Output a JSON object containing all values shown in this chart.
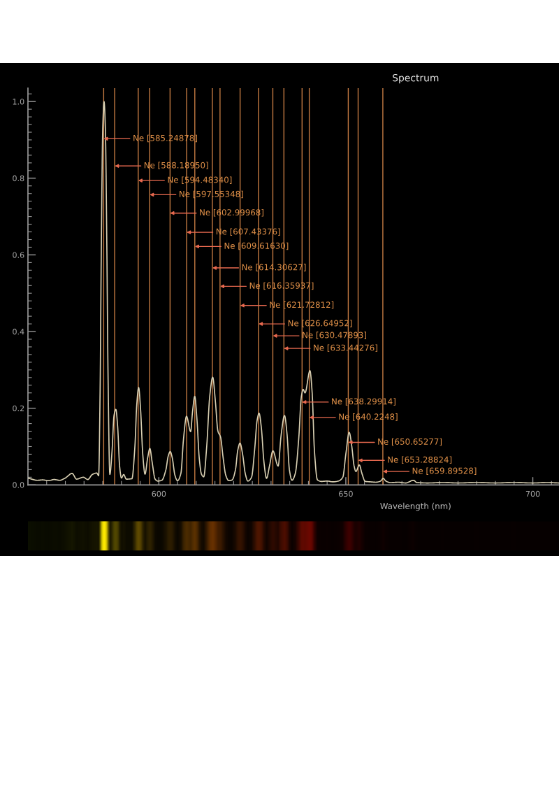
{
  "chart_data": {
    "type": "line",
    "title": "Spectrum",
    "xlabel": "Wavelength (nm)",
    "x": [
      565.0,
      566.0,
      567.5,
      569.0,
      570.5,
      572.0,
      573.5,
      575.0,
      576.8,
      578.0,
      579.8,
      581.0,
      582.2,
      583.4,
      583.9,
      584.3,
      584.6,
      585.0,
      585.35,
      585.7,
      586.1,
      586.4,
      586.9,
      587.5,
      588.0,
      588.5,
      589.0,
      589.5,
      590.0,
      590.6,
      591.3,
      592.8,
      593.6,
      594.1,
      594.6,
      595.1,
      595.7,
      596.3,
      597.0,
      597.6,
      598.2,
      599.0,
      599.7,
      600.8,
      601.9,
      602.5,
      603.05,
      603.6,
      604.3,
      605.0,
      605.9,
      606.6,
      607.4,
      608.5,
      609.0,
      609.6,
      610.2,
      610.8,
      611.4,
      612.0,
      612.8,
      613.6,
      614.4,
      615.1,
      615.8,
      616.5,
      617.2,
      617.9,
      618.7,
      619.6,
      620.5,
      621.1,
      621.7,
      622.4,
      623.1,
      623.8,
      624.8,
      625.6,
      626.3,
      626.8,
      627.4,
      628.1,
      628.8,
      629.6,
      630.5,
      631.9,
      632.7,
      633.6,
      634.3,
      634.9,
      635.6,
      636.5,
      637.4,
      638.1,
      638.6,
      639.1,
      640.4,
      641.0,
      641.6,
      642.4,
      643.5,
      645.0,
      646.5,
      648.0,
      649.2,
      650.0,
      650.9,
      651.6,
      652.2,
      652.7,
      653.6,
      654.3,
      655.2,
      656.5,
      658.0,
      659.3,
      660.0,
      660.7,
      662.0,
      664.0,
      666.0,
      668.1,
      669.0,
      672.0,
      676.0,
      680.0,
      685.0,
      690.0,
      695.0,
      700.0,
      704.0,
      707.0
    ],
    "series": [
      {
        "color": "#d8cfb2",
        "values": [
          0.018,
          0.015,
          0.012,
          0.013,
          0.011,
          0.014,
          0.012,
          0.018,
          0.03,
          0.015,
          0.02,
          0.014,
          0.027,
          0.031,
          0.024,
          0.25,
          0.6,
          0.93,
          1.0,
          0.93,
          0.62,
          0.3,
          0.027,
          0.09,
          0.18,
          0.197,
          0.15,
          0.05,
          0.018,
          0.027,
          0.015,
          0.016,
          0.1,
          0.21,
          0.254,
          0.2,
          0.08,
          0.028,
          0.07,
          0.095,
          0.06,
          0.015,
          0.01,
          0.012,
          0.04,
          0.075,
          0.087,
          0.07,
          0.025,
          0.011,
          0.03,
          0.12,
          0.179,
          0.139,
          0.19,
          0.231,
          0.17,
          0.07,
          0.028,
          0.021,
          0.1,
          0.23,
          0.281,
          0.22,
          0.14,
          0.125,
          0.07,
          0.025,
          0.011,
          0.013,
          0.04,
          0.09,
          0.109,
          0.08,
          0.03,
          0.01,
          0.02,
          0.09,
          0.17,
          0.187,
          0.15,
          0.06,
          0.017,
          0.05,
          0.089,
          0.049,
          0.13,
          0.181,
          0.13,
          0.04,
          0.012,
          0.03,
          0.12,
          0.23,
          0.249,
          0.24,
          0.298,
          0.24,
          0.09,
          0.013,
          0.009,
          0.01,
          0.008,
          0.01,
          0.02,
          0.08,
          0.137,
          0.1,
          0.05,
          0.035,
          0.052,
          0.03,
          0.009,
          0.008,
          0.007,
          0.01,
          0.017,
          0.01,
          0.006,
          0.007,
          0.005,
          0.012,
          0.006,
          0.005,
          0.006,
          0.005,
          0.006,
          0.005,
          0.006,
          0.005,
          0.006,
          0.005
        ]
      }
    ],
    "xlim": [
      565,
      707
    ],
    "ylim": [
      0,
      1.035
    ],
    "xticks": [
      {
        "value": 570,
        "label": null
      },
      {
        "value": 575,
        "label": null
      },
      {
        "value": 580,
        "label": null
      },
      {
        "value": 585,
        "label": null
      },
      {
        "value": 590,
        "label": null
      },
      {
        "value": 595,
        "label": null
      },
      600,
      {
        "value": 605,
        "label": null
      },
      {
        "value": 610,
        "label": null
      },
      {
        "value": 615,
        "label": null
      },
      {
        "value": 620,
        "label": null
      },
      {
        "value": 625,
        "label": null
      },
      {
        "value": 630,
        "label": null
      },
      {
        "value": 635,
        "label": null
      },
      {
        "value": 640,
        "label": null
      },
      {
        "value": 645,
        "label": null
      },
      650,
      {
        "value": 655,
        "label": null
      },
      {
        "value": 660,
        "label": null
      },
      {
        "value": 665,
        "label": null
      },
      {
        "value": 670,
        "label": null
      },
      {
        "value": 675,
        "label": null
      },
      {
        "value": 680,
        "label": null
      },
      {
        "value": 685,
        "label": null
      },
      {
        "value": 690,
        "label": null
      },
      {
        "value": 695,
        "label": null
      },
      700,
      {
        "value": 705,
        "label": null
      }
    ],
    "yticks": [
      {
        "value": 0,
        "label": "0.0"
      },
      {
        "value": 0.02,
        "label": null
      },
      {
        "value": 0.04,
        "label": null
      },
      {
        "value": 0.06,
        "label": null
      },
      {
        "value": 0.08,
        "label": null
      },
      {
        "value": 0.1,
        "label": null
      },
      {
        "value": 0.12,
        "label": null
      },
      {
        "value": 0.14,
        "label": null
      },
      {
        "value": 0.16,
        "label": null
      },
      {
        "value": 0.18,
        "label": null
      },
      0.2,
      {
        "value": 0.22,
        "label": null
      },
      {
        "value": 0.24,
        "label": null
      },
      {
        "value": 0.26,
        "label": null
      },
      {
        "value": 0.28,
        "label": null
      },
      {
        "value": 0.3,
        "label": null
      },
      {
        "value": 0.32,
        "label": null
      },
      {
        "value": 0.34,
        "label": null
      },
      {
        "value": 0.36,
        "label": null
      },
      {
        "value": 0.38,
        "label": null
      },
      0.4,
      {
        "value": 0.42,
        "label": null
      },
      {
        "value": 0.44,
        "label": null
      },
      {
        "value": 0.46,
        "label": null
      },
      {
        "value": 0.48,
        "label": null
      },
      {
        "value": 0.5,
        "label": null
      },
      {
        "value": 0.52,
        "label": null
      },
      {
        "value": 0.54,
        "label": null
      },
      {
        "value": 0.56,
        "label": null
      },
      {
        "value": 0.58,
        "label": null
      },
      0.6,
      {
        "value": 0.62,
        "label": null
      },
      {
        "value": 0.64,
        "label": null
      },
      {
        "value": 0.66,
        "label": null
      },
      {
        "value": 0.68,
        "label": null
      },
      {
        "value": 0.7,
        "label": null
      },
      {
        "value": 0.72,
        "label": null
      },
      {
        "value": 0.74,
        "label": null
      },
      {
        "value": 0.76,
        "label": null
      },
      {
        "value": 0.78,
        "label": null
      },
      0.8,
      {
        "value": 0.82,
        "label": null
      },
      {
        "value": 0.84,
        "label": null
      },
      {
        "value": 0.86,
        "label": null
      },
      {
        "value": 0.88,
        "label": null
      },
      {
        "value": 0.9,
        "label": null
      },
      {
        "value": 0.92,
        "label": null
      },
      {
        "value": 0.94,
        "label": null
      },
      {
        "value": 0.96,
        "label": null
      },
      {
        "value": 0.98,
        "label": null
      },
      {
        "value": 1,
        "label": "1.0"
      },
      {
        "value": 1.02,
        "label": null
      }
    ],
    "ref_lines": [
      {
        "axis": "x",
        "value": 585.24878,
        "color": "#c47a42"
      },
      {
        "axis": "x",
        "value": 588.1895,
        "color": "#c47a42"
      },
      {
        "axis": "x",
        "value": 594.4834,
        "color": "#c47a42"
      },
      {
        "axis": "x",
        "value": 597.55348,
        "color": "#c47a42"
      },
      {
        "axis": "x",
        "value": 602.99968,
        "color": "#c47a42"
      },
      {
        "axis": "x",
        "value": 607.43376,
        "color": "#c47a42"
      },
      {
        "axis": "x",
        "value": 609.6163,
        "color": "#c47a42"
      },
      {
        "axis": "x",
        "value": 614.30627,
        "color": "#c47a42"
      },
      {
        "axis": "x",
        "value": 616.35937,
        "color": "#c47a42"
      },
      {
        "axis": "x",
        "value": 621.72812,
        "color": "#c47a42"
      },
      {
        "axis": "x",
        "value": 626.64952,
        "color": "#c47a42"
      },
      {
        "axis": "x",
        "value": 630.47893,
        "color": "#c47a42"
      },
      {
        "axis": "x",
        "value": 633.44276,
        "color": "#c47a42"
      },
      {
        "axis": "x",
        "value": 638.29914,
        "color": "#c47a42"
      },
      {
        "axis": "x",
        "value": 640.2248,
        "color": "#c47a42"
      },
      {
        "axis": "x",
        "value": 650.65277,
        "color": "#c47a42"
      },
      {
        "axis": "x",
        "value": 653.28824,
        "color": "#c47a42"
      },
      {
        "axis": "x",
        "value": 659.89528,
        "color": "#c47a42"
      }
    ],
    "annotations": [
      {
        "text": "Ne [585.24878]",
        "x": 585.24878,
        "y": 0.903
      },
      {
        "text": "Ne [588.18950]",
        "x": 588.1895,
        "y": 0.832
      },
      {
        "text": "Ne [594.48340]",
        "x": 594.4834,
        "y": 0.794
      },
      {
        "text": "Ne [597.55348]",
        "x": 597.55348,
        "y": 0.757
      },
      {
        "text": "Ne [602.99968]",
        "x": 602.99968,
        "y": 0.709
      },
      {
        "text": "Ne [607.43376]",
        "x": 607.43376,
        "y": 0.659
      },
      {
        "text": "Ne [609.61630]",
        "x": 609.6163,
        "y": 0.622
      },
      {
        "text": "Ne [614.30627]",
        "x": 614.30627,
        "y": 0.566
      },
      {
        "text": "Ne [616.35937]",
        "x": 616.35937,
        "y": 0.518
      },
      {
        "text": "Ne [621.72812]",
        "x": 621.72812,
        "y": 0.468
      },
      {
        "text": "Ne [626.64952]",
        "x": 626.64952,
        "y": 0.42
      },
      {
        "text": "Ne [630.47893]",
        "x": 630.47893,
        "y": 0.389
      },
      {
        "text": "Ne [633.44276]",
        "x": 633.44276,
        "y": 0.356
      },
      {
        "text": "Ne [638.29914]",
        "x": 638.29914,
        "y": 0.216
      },
      {
        "text": "Ne [640.2248]",
        "x": 640.2248,
        "y": 0.176
      },
      {
        "text": "Ne [650.65277]",
        "x": 650.65277,
        "y": 0.111
      },
      {
        "text": "Ne [653.28824]",
        "x": 653.28824,
        "y": 0.064
      },
      {
        "text": "Ne [659.89528]",
        "x": 659.89528,
        "y": 0.035
      }
    ]
  }
}
